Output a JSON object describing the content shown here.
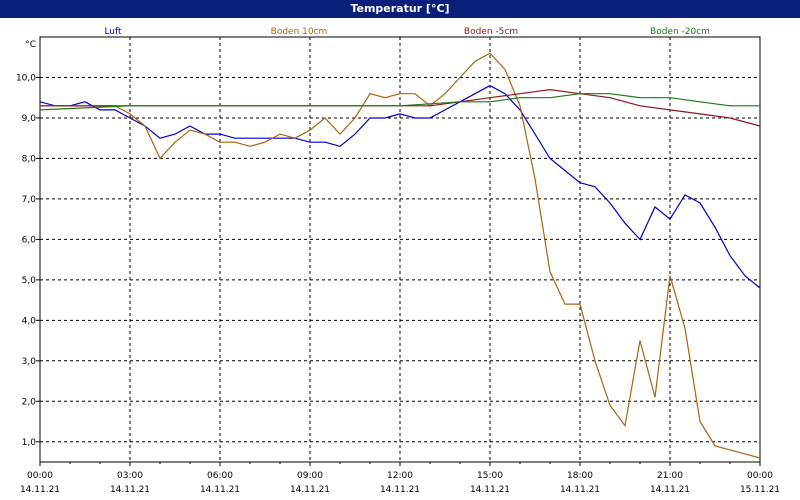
{
  "window": {
    "title": "Temperatur [°C]"
  },
  "chart_data": {
    "type": "line",
    "title": "Temperatur [°C]",
    "ylabel": "°C",
    "xlabel": "",
    "ylim": [
      0.5,
      11.0
    ],
    "xlim": [
      0,
      24
    ],
    "y_ticks": [
      1,
      2,
      3,
      4,
      5,
      6,
      7,
      8,
      9,
      10
    ],
    "y_tick_labels": [
      "1,0",
      "2,0",
      "3,0",
      "4,0",
      "5,0",
      "6,0",
      "7,0",
      "8,0",
      "9,0",
      "10,0"
    ],
    "x_ticks": [
      0,
      3,
      6,
      9,
      12,
      15,
      18,
      21,
      24
    ],
    "x_tick_times": [
      "00:00",
      "03:00",
      "06:00",
      "09:00",
      "12:00",
      "15:00",
      "18:00",
      "21:00",
      "00:00"
    ],
    "x_tick_dates": [
      "14.11.21",
      "14.11.21",
      "14.11.21",
      "14.11.21",
      "14.11.21",
      "14.11.21",
      "14.11.21",
      "14.11.21",
      "15.11.21"
    ],
    "grid": true,
    "legend_position": "top",
    "series": [
      {
        "name": "Luft",
        "color": "#0000cc",
        "x": [
          0,
          0.5,
          1.0,
          1.5,
          2.0,
          2.5,
          3.0,
          3.5,
          4.0,
          4.5,
          5.0,
          5.5,
          6.0,
          6.5,
          7.0,
          7.5,
          8.0,
          8.5,
          9.0,
          9.5,
          10.0,
          10.5,
          11.0,
          11.5,
          12.0,
          12.5,
          13.0,
          13.5,
          14.0,
          14.5,
          15.0,
          15.5,
          16.0,
          16.5,
          17.0,
          17.5,
          18.0,
          18.5,
          19.0,
          19.5,
          20.0,
          20.5,
          21.0,
          21.5,
          22.0,
          22.5,
          23.0,
          23.5,
          24.0
        ],
        "y": [
          9.4,
          9.3,
          9.3,
          9.4,
          9.2,
          9.2,
          9.0,
          8.8,
          8.5,
          8.6,
          8.8,
          8.6,
          8.6,
          8.5,
          8.5,
          8.5,
          8.5,
          8.5,
          8.4,
          8.4,
          8.3,
          8.6,
          9.0,
          9.0,
          9.1,
          9.0,
          9.0,
          9.2,
          9.4,
          9.6,
          9.8,
          9.6,
          9.2,
          8.6,
          8.0,
          7.7,
          7.4,
          7.3,
          6.9,
          6.4,
          6.0,
          6.8,
          6.5,
          7.1,
          6.9,
          6.3,
          5.6,
          5.1,
          4.8
        ]
      },
      {
        "name": "Boden 10cm",
        "color": "#b06010",
        "x": [
          0,
          0.5,
          1.0,
          1.5,
          2.0,
          2.5,
          3.0,
          3.5,
          4.0,
          4.5,
          5.0,
          5.5,
          6.0,
          6.5,
          7.0,
          7.5,
          8.0,
          8.5,
          9.0,
          9.5,
          10.0,
          10.5,
          11.0,
          11.5,
          12.0,
          12.5,
          13.0,
          13.5,
          14.0,
          14.5,
          15.0,
          15.5,
          16.0,
          16.5,
          17.0,
          17.5,
          18.0,
          18.5,
          19.0,
          19.5,
          20.0,
          20.5,
          21.0,
          21.5,
          22.0,
          22.5,
          23.0,
          23.5,
          24.0
        ],
        "y": [
          9.3,
          9.3,
          9.3,
          9.3,
          9.3,
          9.3,
          9.1,
          8.8,
          8.0,
          8.4,
          8.7,
          8.6,
          8.4,
          8.4,
          8.3,
          8.4,
          8.6,
          8.5,
          8.7,
          9.0,
          8.6,
          9.0,
          9.6,
          9.5,
          9.6,
          9.6,
          9.3,
          9.6,
          10.0,
          10.4,
          10.6,
          10.2,
          9.3,
          7.5,
          5.2,
          4.4,
          4.4,
          3.0,
          1.9,
          1.4,
          3.5,
          2.1,
          5.1,
          3.8,
          1.5,
          0.9,
          0.8,
          0.7,
          0.6
        ]
      },
      {
        "name": "Boden -5cm",
        "color": "#8b1a1a",
        "x": [
          0,
          1.0,
          2.0,
          3.0,
          4.0,
          5.0,
          6.0,
          7.0,
          8.0,
          9.0,
          10.0,
          11.0,
          12.0,
          13.0,
          14.0,
          15.0,
          16.0,
          17.0,
          18.0,
          19.0,
          20.0,
          21.0,
          22.0,
          23.0,
          24.0
        ],
        "y": [
          9.3,
          9.3,
          9.3,
          9.3,
          9.3,
          9.3,
          9.3,
          9.3,
          9.3,
          9.3,
          9.3,
          9.3,
          9.3,
          9.3,
          9.4,
          9.5,
          9.6,
          9.7,
          9.6,
          9.5,
          9.3,
          9.2,
          9.1,
          9.0,
          8.8
        ]
      },
      {
        "name": "Boden -20cm",
        "color": "#1a7a1a",
        "x": [
          0,
          3.0,
          6.0,
          9.0,
          12.0,
          14.0,
          15.0,
          16.0,
          17.0,
          18.0,
          19.0,
          20.0,
          21.0,
          22.0,
          23.0,
          24.0
        ],
        "y": [
          9.2,
          9.3,
          9.3,
          9.3,
          9.3,
          9.4,
          9.4,
          9.5,
          9.5,
          9.6,
          9.6,
          9.5,
          9.5,
          9.4,
          9.3,
          9.3
        ]
      }
    ]
  }
}
